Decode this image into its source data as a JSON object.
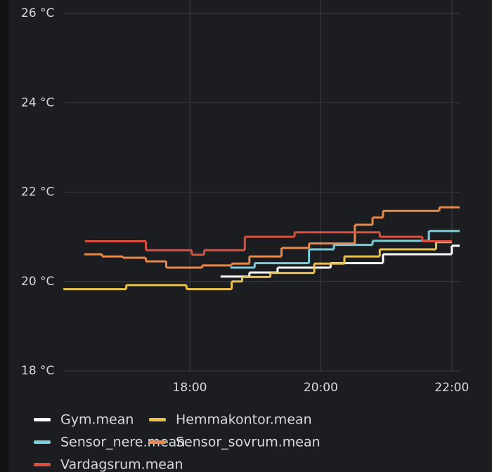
{
  "chart_data": {
    "type": "line",
    "step": true,
    "xlim": [
      16.09,
      22.12
    ],
    "xticks": [
      {
        "value": 18,
        "label": "18:00"
      },
      {
        "value": 20,
        "label": "20:00"
      },
      {
        "value": 22,
        "label": "22:00"
      }
    ],
    "ylim": [
      18,
      26
    ],
    "yticks": [
      {
        "value": 18,
        "label": "18 °C"
      },
      {
        "value": 20,
        "label": "20 °C"
      },
      {
        "value": 22,
        "label": "22 °C"
      },
      {
        "value": 24,
        "label": "24 °C"
      },
      {
        "value": 26,
        "label": "26 °C"
      }
    ],
    "grid": true,
    "series": [
      {
        "name": "Gym.mean",
        "color": "#ffffff",
        "x": [
          18.47,
          18.91,
          19.34,
          20.15,
          20.95,
          22.0,
          22.12
        ],
        "values": [
          20.11,
          20.2,
          20.31,
          20.41,
          20.61,
          20.8,
          20.8
        ]
      },
      {
        "name": "Hemmakontor.mean",
        "color": "#eac24c",
        "x": [
          16.07,
          17.03,
          17.95,
          18.64,
          18.8,
          19.23,
          19.9,
          20.36,
          20.9,
          21.76,
          22.0
        ],
        "values": [
          19.83,
          19.92,
          19.83,
          20.0,
          20.1,
          20.19,
          20.4,
          20.56,
          20.72,
          20.88,
          20.88
        ]
      },
      {
        "name": "Sensor_nere.mean",
        "color": "#79cfdc",
        "x": [
          18.62,
          18.99,
          19.82,
          20.2,
          20.79,
          21.65,
          22.12
        ],
        "values": [
          20.31,
          20.41,
          20.72,
          20.82,
          20.91,
          21.13,
          21.13
        ]
      },
      {
        "name": "Sensor_sovrum.mean",
        "color": "#e8894a",
        "x": [
          16.39,
          16.66,
          16.98,
          17.33,
          17.64,
          18.19,
          18.64,
          18.91,
          19.4,
          19.82,
          20.52,
          20.79,
          20.95,
          21.81,
          22.12
        ],
        "values": [
          20.61,
          20.56,
          20.53,
          20.45,
          20.31,
          20.36,
          20.4,
          20.56,
          20.75,
          20.85,
          21.27,
          21.43,
          21.58,
          21.66,
          21.66
        ]
      },
      {
        "name": "Vardagsrum.mean",
        "color": "#d9503f",
        "x": [
          16.4,
          17.33,
          18.03,
          18.22,
          18.84,
          19.6,
          20.9,
          21.55,
          22.0
        ],
        "values": [
          20.9,
          20.7,
          20.6,
          20.7,
          21.0,
          21.1,
          21.0,
          20.9,
          20.9
        ]
      }
    ]
  }
}
